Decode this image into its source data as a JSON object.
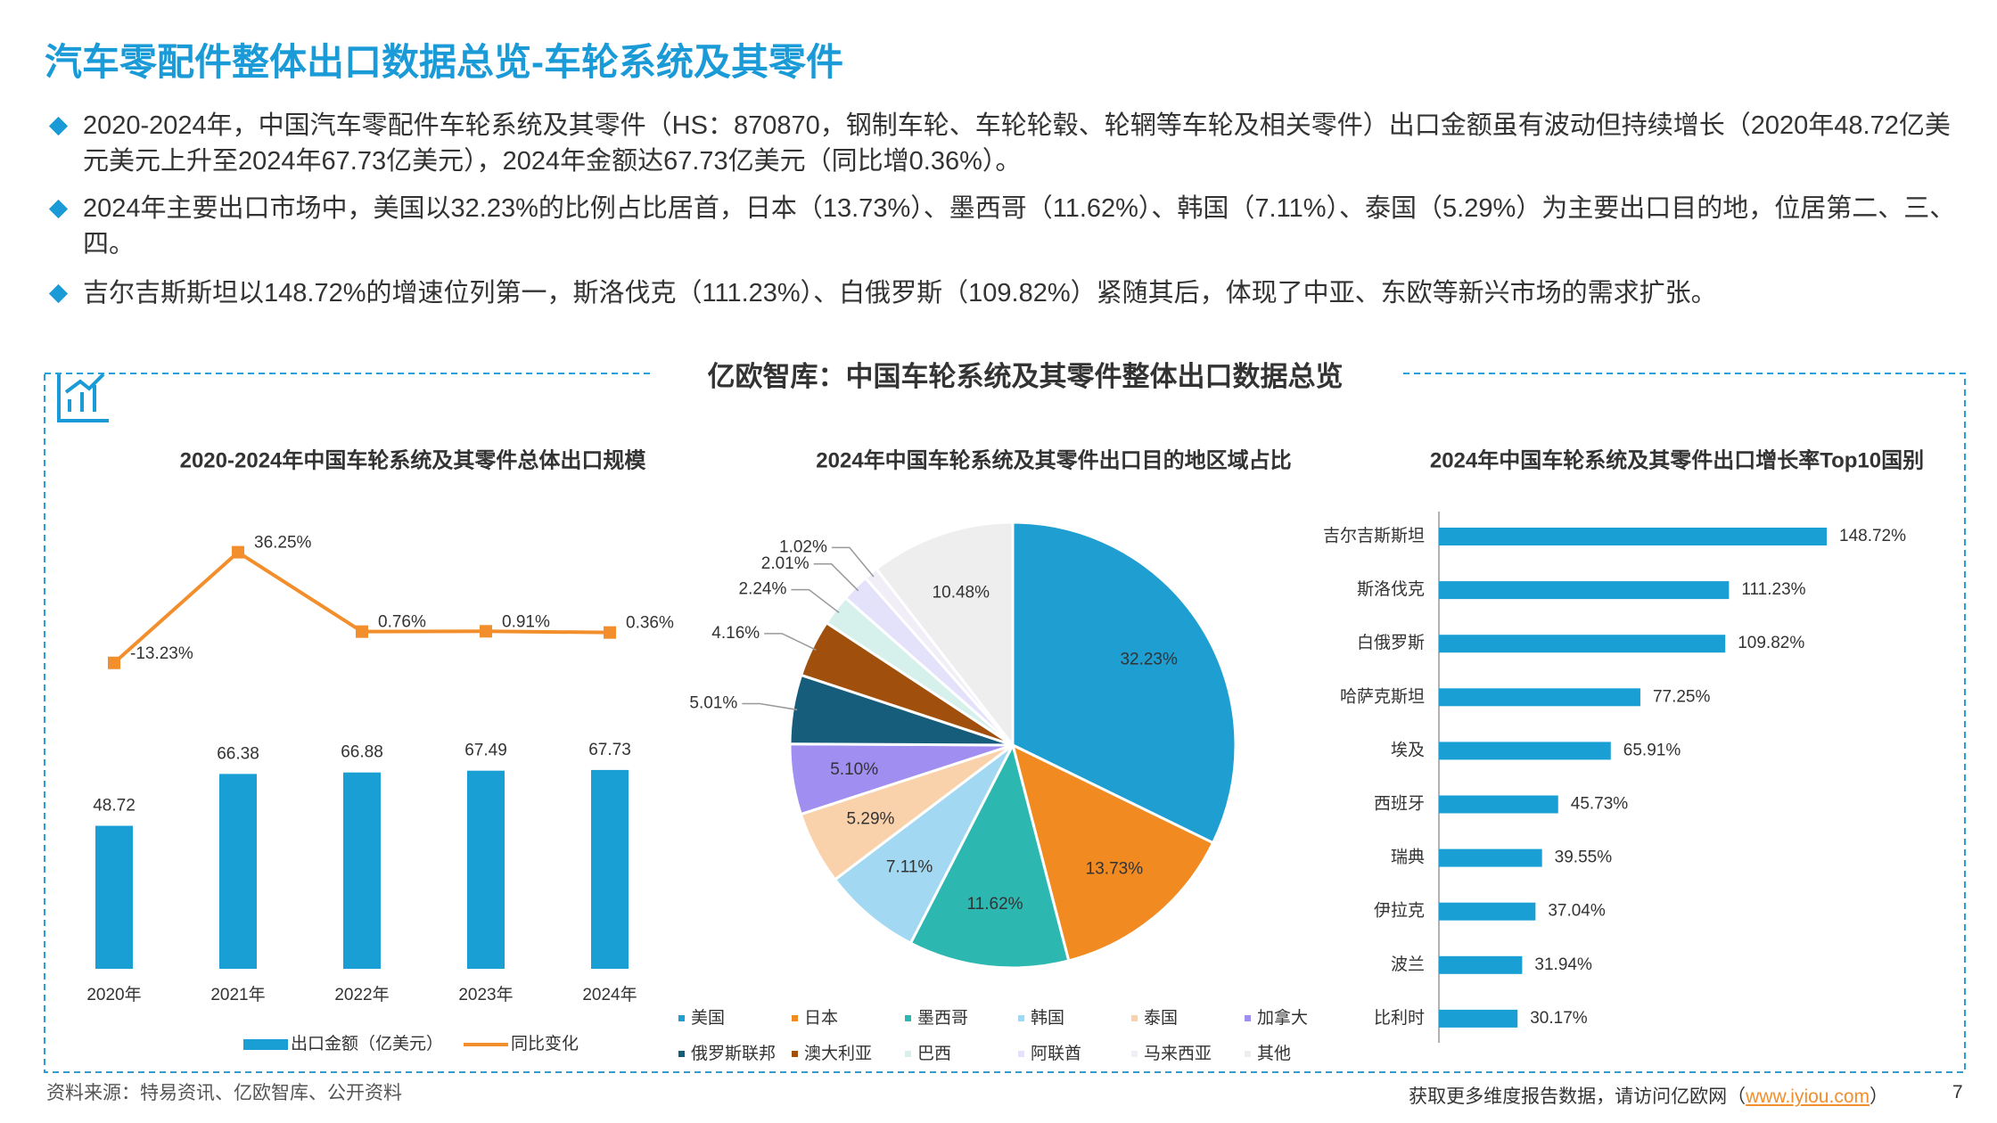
{
  "title": "汽车零配件整体出口数据总览-车轮系统及其零件",
  "bullets": [
    "2020-2024年，中国汽车零配件车轮系统及其零件（HS：870870，钢制车轮、车轮轮毂、轮辋等车轮及相关零件）出口金额虽有波动但持续增长（2020年48.72亿美元美元上升至2024年67.73亿美元），2024年金额达67.73亿美元（同比增0.36%）。",
    "2024年主要出口市场中，美国以32.23%的比例占比居首，日本（13.73%）、墨西哥（11.62%）、韩国（7.11%）、泰国（5.29%）为主要出口目的地，位居第二、三、四。",
    "吉尔吉斯斯坦以148.72%的增速位列第一，斯洛伐克（111.23%）、白俄罗斯（109.82%）紧随其后，体现了中亚、东欧等新兴市场的需求扩张。"
  ],
  "panel_title": "亿欧智库：中国车轮系统及其零件整体出口数据总览",
  "chart_data": [
    {
      "type": "combo",
      "title": "2020-2024年中国车轮系统及其零件总体出口规模",
      "categories": [
        "2020年",
        "2021年",
        "2022年",
        "2023年",
        "2024年"
      ],
      "series": [
        {
          "name": "出口金额（亿美元）",
          "type": "bar",
          "color": "#1a9fd5",
          "values": [
            48.72,
            66.38,
            66.88,
            67.49,
            67.73
          ]
        },
        {
          "name": "同比变化",
          "type": "line",
          "axis": "y2",
          "color": "#f28e2b",
          "values": [
            -13.23,
            36.25,
            0.76,
            0.91,
            0.36
          ],
          "value_labels": [
            "-13.23%",
            "36.25%",
            "0.76%",
            "0.91%",
            "0.36%"
          ]
        }
      ],
      "ylim": [
        0,
        160
      ],
      "y2lim": [
        -150,
        60
      ]
    },
    {
      "type": "pie",
      "title": "2024年中国车轮系统及其零件出口目的地区域占比",
      "categories": [
        "美国",
        "日本",
        "墨西哥",
        "韩国",
        "泰国",
        "加拿大",
        "俄罗斯联邦",
        "澳大利亚",
        "巴西",
        "阿联酋",
        "马来西亚",
        "其他"
      ],
      "values": [
        32.23,
        13.73,
        11.62,
        7.11,
        5.29,
        5.1,
        5.01,
        4.16,
        2.24,
        2.01,
        1.02,
        10.48
      ],
      "value_labels": [
        "32.23%",
        "13.73%",
        "11.62%",
        "7.11%",
        "5.29%",
        "5.10%",
        "5.01%",
        "4.16%",
        "2.24%",
        "2.01%",
        "1.02%",
        "10.48%"
      ],
      "colors": [
        "#1f9ed1",
        "#f28a22",
        "#2db7b1",
        "#a2d8f1",
        "#f9d2ac",
        "#a08ef0",
        "#155d7b",
        "#a0500c",
        "#d6f1ec",
        "#e4e1fa",
        "#f1eef8",
        "#eeeeee"
      ]
    },
    {
      "type": "hbar",
      "title": "2024年中国车轮系统及其零件出口增长率Top10国别",
      "categories": [
        "吉尔吉斯斯坦",
        "斯洛伐克",
        "白俄罗斯",
        "哈萨克斯坦",
        "埃及",
        "西班牙",
        "瑞典",
        "伊拉克",
        "波兰",
        "比利时"
      ],
      "values": [
        148.72,
        111.23,
        109.82,
        77.25,
        65.91,
        45.73,
        39.55,
        37.04,
        31.94,
        30.17
      ],
      "value_labels": [
        "148.72%",
        "111.23%",
        "109.82%",
        "77.25%",
        "65.91%",
        "45.73%",
        "39.55%",
        "37.04%",
        "31.94%",
        "30.17%"
      ],
      "color": "#1a9fd5",
      "xlim": [
        0,
        160
      ]
    }
  ],
  "source": "资料来源：特易资讯、亿欧智库、公开资料",
  "footer": {
    "prefix": "获取更多维度报告数据，请访问亿欧网（",
    "link": "www.iyiou.com",
    "suffix": "）",
    "page": "7"
  }
}
